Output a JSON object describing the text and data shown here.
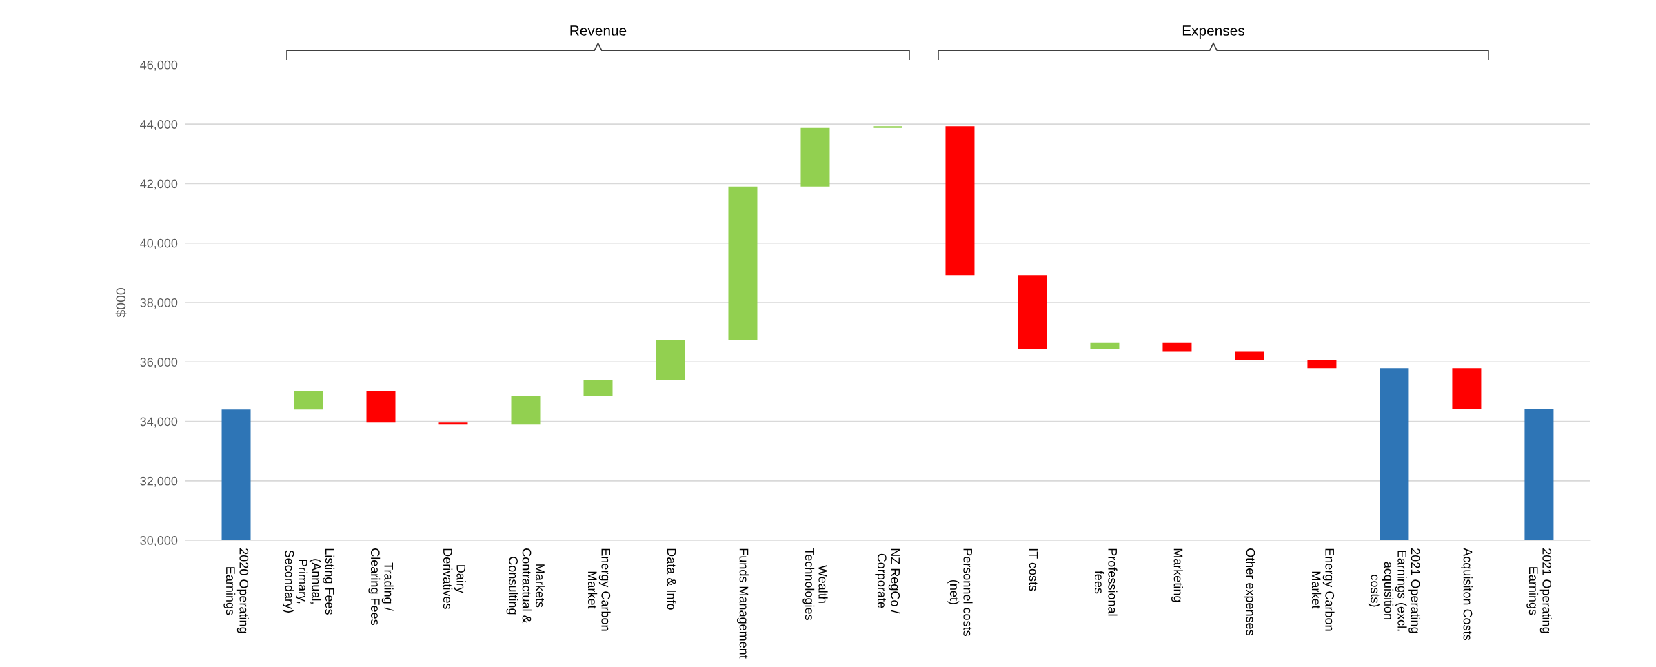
{
  "chart_data": {
    "type": "bar",
    "ylabel": "$000",
    "categories": [
      "2020 Operating Earnings",
      "Listing Fees (Annual, Primary, Secondary)",
      "Trading / Clearing Fees",
      "Dairy Derivatives",
      "Markets Contractual & Consulting",
      "Energy Carbon Market",
      "Data & Info",
      "Funds Management",
      "Wealth Technologies",
      "NZ RegCo / Corporate",
      "Personnel costs (net)",
      "IT costs",
      "Professional fees",
      "Marketing",
      "Other expenses",
      "Energy Carbon Market",
      "2021 Operating Earnings (excl. acquisition costs)",
      "Acquisiton Costs",
      "2021 Operating Earnings"
    ],
    "base": [
      30000,
      34400,
      35020,
      33960,
      33890,
      34860,
      35400,
      36730,
      41900,
      43870,
      43930,
      38920,
      36430,
      36640,
      36340,
      36060,
      30000,
      35790,
      30000
    ],
    "values": [
      4400,
      620,
      -1060,
      -70,
      970,
      540,
      1330,
      5170,
      1970,
      60,
      -5010,
      -2490,
      210,
      -300,
      -280,
      -270,
      5790,
      -1360,
      4430
    ],
    "colors": [
      "#2e75b6",
      "#92d050",
      "#ff0000",
      "#ff0000",
      "#92d050",
      "#92d050",
      "#92d050",
      "#92d050",
      "#92d050",
      "#92d050",
      "#ff0000",
      "#ff0000",
      "#92d050",
      "#ff0000",
      "#ff0000",
      "#ff0000",
      "#2e75b6",
      "#ff0000",
      "#2e75b6"
    ],
    "ylim": [
      30000,
      46000
    ],
    "yticks": [
      {
        "value": 30000,
        "label": "30,000"
      },
      {
        "value": 32000,
        "label": "32,000"
      },
      {
        "value": 34000,
        "label": "34,000"
      },
      {
        "value": 36000,
        "label": "36,000"
      },
      {
        "value": 38000,
        "label": "38,000"
      },
      {
        "value": 40000,
        "label": "40,000"
      },
      {
        "value": 42000,
        "label": "42,000"
      },
      {
        "value": 44000,
        "label": "44,000"
      },
      {
        "value": 46000,
        "label": "46,000"
      }
    ],
    "grid": "y",
    "annotations": [
      "Revenue",
      "Expenses"
    ]
  }
}
